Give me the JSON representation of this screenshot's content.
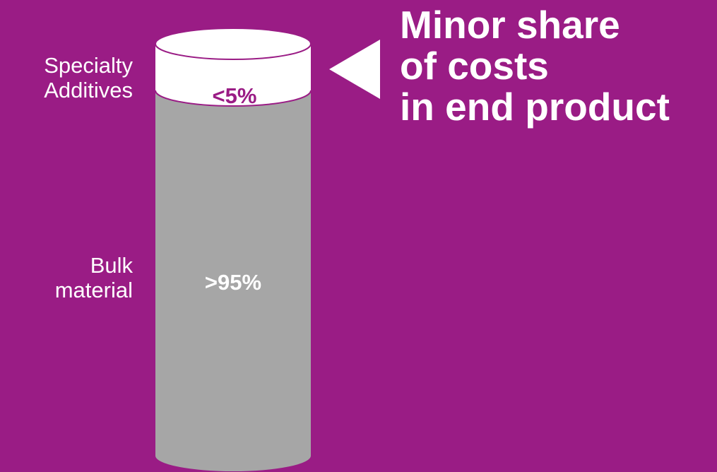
{
  "colors": {
    "background": "#9a1c85",
    "additives_segment": "#ffffff",
    "bulk_segment": "#a6a6a6",
    "outline": "#9a1c85",
    "text_light": "#ffffff",
    "text_accent": "#9a1c85"
  },
  "segments": {
    "additives": {
      "label_line1": "Specialty",
      "label_line2": "Additives",
      "share": "<5%"
    },
    "bulk": {
      "label_line1": "Bulk",
      "label_line2": "material",
      "share": ">95%"
    }
  },
  "headline": {
    "line1": "Minor share",
    "line2": "of costs",
    "line3": "in end product"
  },
  "pointer": {
    "icon": "left-triangle-arrow-icon"
  }
}
